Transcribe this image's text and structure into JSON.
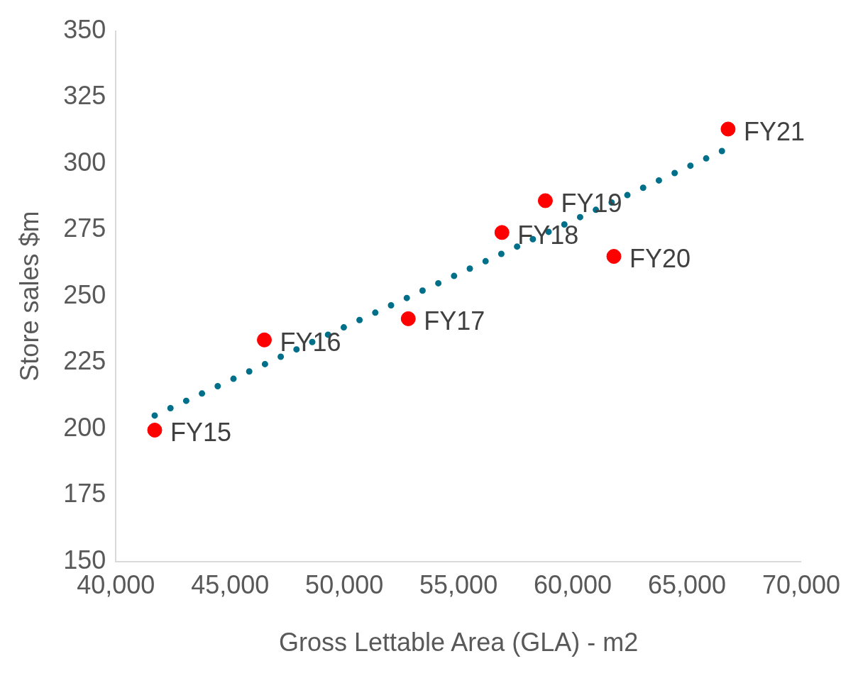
{
  "chart_data": {
    "type": "scatter",
    "xlabel": "Gross Lettable Area (GLA) - m2",
    "ylabel": "Store sales $m",
    "xlim": [
      40000,
      70000
    ],
    "xticks": [
      {
        "value": 40000,
        "label": "40,000"
      },
      {
        "value": 45000,
        "label": "45,000"
      },
      {
        "value": 50000,
        "label": "50,000"
      },
      {
        "value": 55000,
        "label": "55,000"
      },
      {
        "value": 60000,
        "label": "60,000"
      },
      {
        "value": 65000,
        "label": "65,000"
      },
      {
        "value": 70000,
        "label": "70,000"
      }
    ],
    "ylim": [
      150,
      350
    ],
    "yticks": [
      150,
      175,
      200,
      225,
      250,
      275,
      300,
      325,
      350
    ],
    "grid": false,
    "legend": false,
    "series": [
      {
        "color": "#ff0000",
        "marker": "circle",
        "x": [
          41700,
          46500,
          52800,
          56900,
          58800,
          61800,
          66800
        ],
        "values": [
          199.5,
          233.5,
          241.5,
          274,
          286,
          265,
          313
        ],
        "value_labels": [
          "FY15",
          "FY16",
          "FY17",
          "FY18",
          "FY19",
          "FY20",
          "FY21"
        ]
      },
      {
        "type": "line",
        "color": "#00708a",
        "line_style": "dotted",
        "marker": "none",
        "x": [
          41700,
          66600
        ],
        "values": [
          205,
          305
        ]
      }
    ]
  }
}
